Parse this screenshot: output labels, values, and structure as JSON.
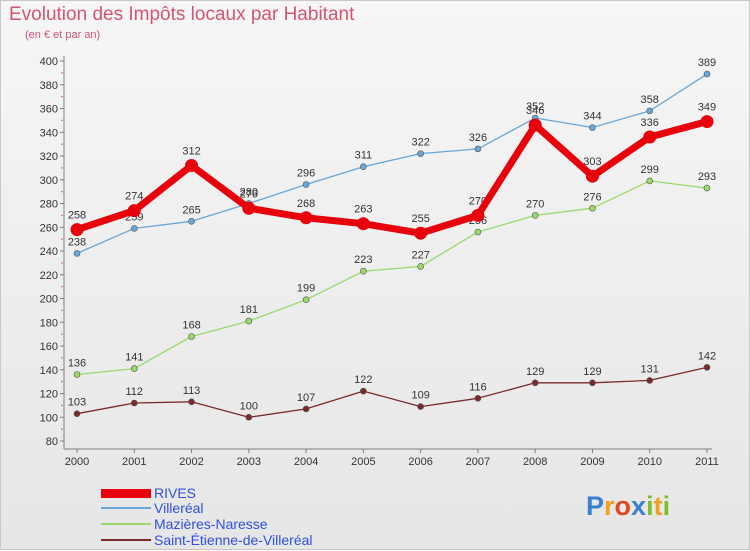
{
  "title": "Evolution des Impôts locaux par Habitant",
  "subtitle": "(en € et par an)",
  "logo": {
    "text": "Proxiti",
    "letters": [
      {
        "ch": "P",
        "color": "#3a7fd0"
      },
      {
        "ch": "r",
        "color": "#f0a020"
      },
      {
        "ch": "o",
        "color": "#e04a20"
      },
      {
        "ch": "x",
        "color": "#3a7fd0"
      },
      {
        "ch": "i",
        "color": "#7cbf2a"
      },
      {
        "ch": "t",
        "color": "#f0a020"
      },
      {
        "ch": "i",
        "color": "#7cbf2a"
      }
    ]
  },
  "chart_data": {
    "type": "line",
    "title": "Evolution des Impôts locaux par Habitant",
    "ylabel": "(en € et par an)",
    "xlabel": "",
    "ylim": [
      80,
      400
    ],
    "ytick_step": 20,
    "grid": false,
    "legend_position": "bottom-left",
    "categories": [
      "2000",
      "2001",
      "2002",
      "2003",
      "2004",
      "2005",
      "2006",
      "2007",
      "2008",
      "2009",
      "2010",
      "2011"
    ],
    "series": [
      {
        "name": "RIVES",
        "color": "#e8000b",
        "values": [
          258,
          274,
          312,
          276,
          268,
          263,
          255,
          270,
          346,
          303,
          336,
          349
        ],
        "emphasis": true
      },
      {
        "name": "Villeréal",
        "color": "#6aa6d6",
        "values": [
          238,
          259,
          265,
          280,
          296,
          311,
          322,
          326,
          352,
          344,
          358,
          389
        ],
        "emphasis": false
      },
      {
        "name": "Mazières-Naresse",
        "color": "#9ad86a",
        "values": [
          136,
          141,
          168,
          181,
          199,
          223,
          227,
          256,
          270,
          276,
          299,
          293
        ],
        "emphasis": false
      },
      {
        "name": "Saint-Étienne-de-Villeréal",
        "color": "#7a2a2a",
        "values": [
          103,
          112,
          113,
          100,
          107,
          122,
          109,
          116,
          129,
          129,
          131,
          142
        ],
        "emphasis": false
      }
    ]
  }
}
